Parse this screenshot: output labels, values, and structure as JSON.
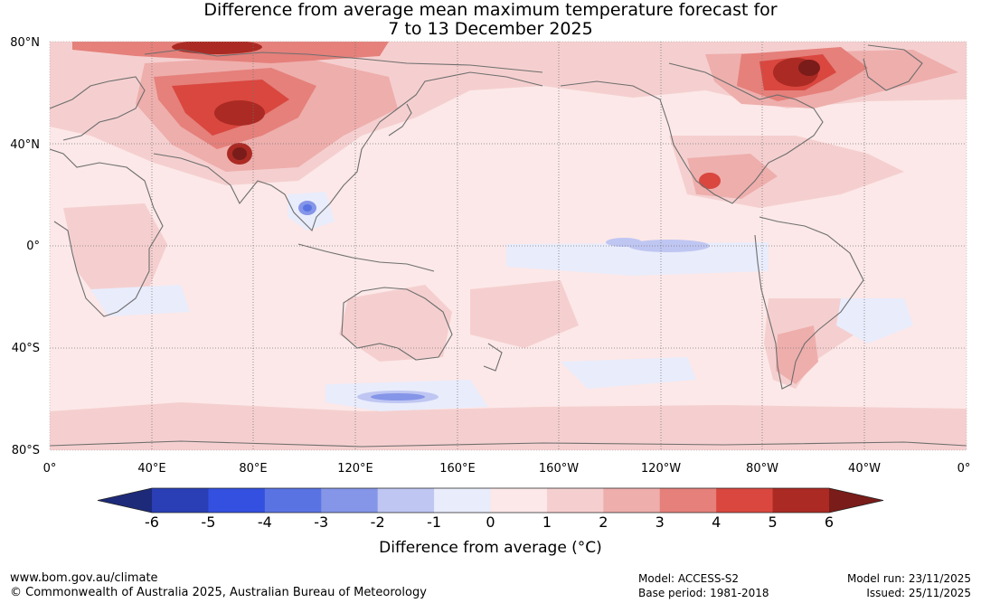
{
  "title": {
    "line1": "Difference from average mean maximum temperature forecast for",
    "line2": "7 to 13 December 2025"
  },
  "axes": {
    "lat_labels": [
      "80°N",
      "40°N",
      "0°",
      "40°S",
      "80°S"
    ],
    "lat_values": [
      80,
      40,
      0,
      -40,
      -80
    ],
    "lon_labels": [
      "0°",
      "40°E",
      "80°E",
      "120°E",
      "160°E",
      "160°W",
      "120°W",
      "80°W",
      "40°W",
      "0°"
    ],
    "lon_values": [
      0,
      40,
      80,
      120,
      160,
      200,
      240,
      280,
      320,
      360
    ],
    "lat_range": [
      -80,
      80
    ],
    "lon_range": [
      0,
      360
    ]
  },
  "colorbar": {
    "ticks": [
      "-6",
      "-5",
      "-4",
      "-3",
      "-2",
      "-1",
      "0",
      "1",
      "2",
      "3",
      "4",
      "5",
      "6"
    ],
    "colors": [
      "#1d2a7a",
      "#2a3fb5",
      "#3350e0",
      "#5a73e3",
      "#8595e8",
      "#bfc6f2",
      "#e9ecfb",
      "#fce8e8",
      "#f5cfcf",
      "#eeaeac",
      "#e5807b",
      "#d9473f",
      "#ab2a24",
      "#7a1c19"
    ],
    "label": "Difference from average (°C)"
  },
  "footer": {
    "website": "www.bom.gov.au/climate",
    "copyright": "© Commonwealth of Australia 2025, Australian Bureau of Meteorology",
    "model": "Model: ACCESS-S2",
    "base_period": "Base period: 1981-2018",
    "model_run": "Model run: 23/11/2025",
    "issued": "Issued: 25/11/2025"
  }
}
